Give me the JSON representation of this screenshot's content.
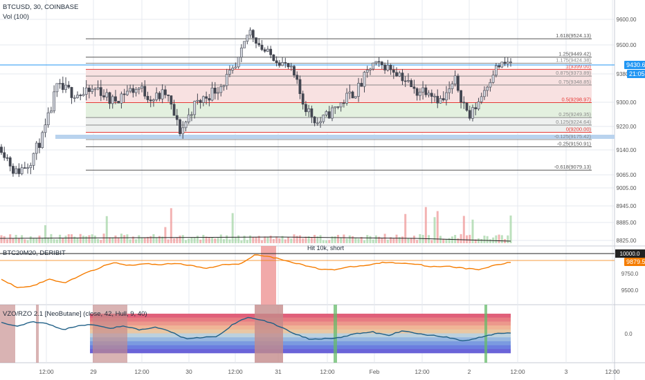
{
  "header": {
    "symbol_line": "BTCUSD, 30, COINBASE",
    "volume_label": "Vol (100)"
  },
  "panes": {
    "futures_label": "BTC20M20, DERIBIT",
    "oscillator_label": "VZO/RZO 2.1 [NeoButane] (close, 42, Hull, 9, 40)"
  },
  "annotation": "Hit 10k, short",
  "price_scale": {
    "main": [
      "9600.00",
      "9500.00",
      "9380.00",
      "9300.00",
      "9220.00",
      "9140.00",
      "9065.00",
      "9005.00",
      "8945.00",
      "8885.00",
      "8825.00"
    ],
    "futures": [
      "10000.0",
      "9750.0",
      "9500.0"
    ],
    "oscillator": [
      "0.0"
    ]
  },
  "current_price": {
    "value": "9430.61",
    "countdown": "21:05"
  },
  "futures_price": "9879.5",
  "fib_levels": [
    {
      "label": "1.618(9524.13)",
      "price": 9524.13,
      "color": "#555555"
    },
    {
      "label": "1.25(9449.42)",
      "price": 9449.42,
      "color": "#555555"
    },
    {
      "label": "1.175(9424.38)",
      "price": 9424.38,
      "color": "#888888"
    },
    {
      "label": "1(9399.00)",
      "price": 9399.0,
      "color": "#e53935"
    },
    {
      "label": "0.875(9373.89)",
      "price": 9373.89,
      "color": "#888888"
    },
    {
      "label": "0.75(9348.85)",
      "price": 9348.85,
      "color": "#888888"
    },
    {
      "label": "0.5(9298.97)",
      "price": 9298.97,
      "color": "#e53935"
    },
    {
      "label": "0.25(9249.35)",
      "price": 9249.35,
      "color": "#888888"
    },
    {
      "label": "0.125(9224.64)",
      "price": 9224.64,
      "color": "#888888"
    },
    {
      "label": "0(9200.00)",
      "price": 9200.0,
      "color": "#e53935"
    },
    {
      "label": "-0.125(9175.42)",
      "price": 9175.42,
      "color": "#888888"
    },
    {
      "label": "-0.25(9150.91)",
      "price": 9150.91,
      "color": "#555555"
    },
    {
      "label": "-0.618(9079.13)",
      "price": 9079.13,
      "color": "#555555"
    }
  ],
  "time_axis": [
    "12:00",
    "29",
    "12:00",
    "30",
    "12:00",
    "31",
    "12:00",
    "Feb",
    "12:00",
    "2",
    "12:00",
    "3",
    "12:00"
  ],
  "colors": {
    "up": "#d1d4dc",
    "down": "#434651",
    "price_line": "#2196f3",
    "futures_line": "#f57c00",
    "osc_line": "#1f5f86",
    "fib_red": "#e53935",
    "grid": "#e6e9ef",
    "short_highlight": "#ef9a9a",
    "green_marker": "#66bb6a",
    "rose_marker": "#c48b8b"
  },
  "chart_data": [
    {
      "type": "candlestick",
      "title": "BTCUSD, 30, COINBASE",
      "xlabel": "",
      "ylabel": "",
      "x": [
        "28 Jan 12:00",
        "29 Jan",
        "29 Jan 12:00",
        "30 Jan",
        "30 Jan 12:00",
        "31 Jan",
        "31 Jan 12:00",
        "1 Feb",
        "1 Feb 12:00",
        "2 Feb",
        "2 Feb 12:00"
      ],
      "anchors": [
        9150,
        9070,
        9100,
        9185,
        9340,
        9330,
        9320,
        9340,
        9300,
        9330,
        9340,
        9310,
        9325,
        9200,
        9290,
        9320,
        9350,
        9400,
        9560,
        9480,
        9440,
        9400,
        9290,
        9230,
        9270,
        9310,
        9340,
        9420,
        9410,
        9380,
        9330,
        9340,
        9300,
        9360,
        9250,
        9330,
        9410,
        9430
      ],
      "ylim": [
        8800,
        9660
      ]
    },
    {
      "type": "line",
      "title": "BTC20M20, DERIBIT",
      "anchors": [
        9650,
        9540,
        9560,
        9650,
        9600,
        9710,
        9790,
        9880,
        9840,
        9860,
        9850,
        9870,
        9830,
        9800,
        9850,
        9860,
        9990,
        9950,
        9900,
        9840,
        9790,
        9780,
        9820,
        9840,
        9880,
        9870,
        9860,
        9820,
        9830,
        9800,
        9780,
        9840,
        9880
      ],
      "ylim": [
        9380,
        10080
      ]
    },
    {
      "type": "line",
      "title": "VZO/RZO 2.1 [NeoButane] (close, 42, Hull, 9, 40)",
      "anchors": [
        60,
        40,
        65,
        55,
        20,
        45,
        50,
        30,
        40,
        20,
        35,
        10,
        -30,
        -20,
        -15,
        50,
        90,
        70,
        40,
        0,
        -30,
        -25,
        -20,
        0,
        10,
        -10,
        15,
        0,
        -10,
        -20,
        -40,
        -20,
        0,
        5
      ],
      "ylim": [
        -100,
        100
      ]
    }
  ]
}
